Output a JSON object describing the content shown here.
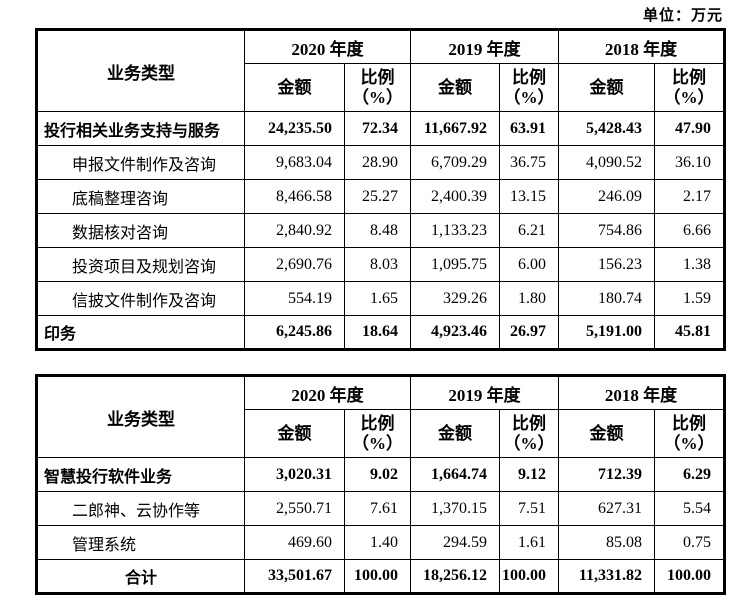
{
  "unit_label": "单位：万元",
  "tables": [
    {
      "header": {
        "business_type": "业务类型",
        "years": [
          "2020 年度",
          "2019 年度",
          "2018 年度"
        ],
        "amount": "金额",
        "ratio": "比例\n（%）"
      },
      "rows": [
        {
          "name": "投行相关业务支持与服务",
          "bold": true,
          "indent": false,
          "center": false,
          "values": [
            "24,235.50",
            "72.34",
            "11,667.92",
            "63.91",
            "5,428.43",
            "47.90"
          ]
        },
        {
          "name": "申报文件制作及咨询",
          "bold": false,
          "indent": true,
          "center": false,
          "values": [
            "9,683.04",
            "28.90",
            "6,709.29",
            "36.75",
            "4,090.52",
            "36.10"
          ]
        },
        {
          "name": "底稿整理咨询",
          "bold": false,
          "indent": true,
          "center": false,
          "values": [
            "8,466.58",
            "25.27",
            "2,400.39",
            "13.15",
            "246.09",
            "2.17"
          ]
        },
        {
          "name": "数据核对咨询",
          "bold": false,
          "indent": true,
          "center": false,
          "values": [
            "2,840.92",
            "8.48",
            "1,133.23",
            "6.21",
            "754.86",
            "6.66"
          ]
        },
        {
          "name": "投资项目及规划咨询",
          "bold": false,
          "indent": true,
          "center": false,
          "values": [
            "2,690.76",
            "8.03",
            "1,095.75",
            "6.00",
            "156.23",
            "1.38"
          ]
        },
        {
          "name": "信披文件制作及咨询",
          "bold": false,
          "indent": true,
          "center": false,
          "values": [
            "554.19",
            "1.65",
            "329.26",
            "1.80",
            "180.74",
            "1.59"
          ]
        },
        {
          "name": "印务",
          "bold": true,
          "indent": false,
          "center": false,
          "values": [
            "6,245.86",
            "18.64",
            "4,923.46",
            "26.97",
            "5,191.00",
            "45.81"
          ]
        }
      ]
    },
    {
      "header": {
        "business_type": "业务类型",
        "years": [
          "2020 年度",
          "2019 年度",
          "2018 年度"
        ],
        "amount": "金额",
        "ratio": "比例\n（%）"
      },
      "rows": [
        {
          "name": "智慧投行软件业务",
          "bold": true,
          "indent": false,
          "center": false,
          "values": [
            "3,020.31",
            "9.02",
            "1,664.74",
            "9.12",
            "712.39",
            "6.29"
          ]
        },
        {
          "name": "二郎神、云协作等",
          "bold": false,
          "indent": true,
          "center": false,
          "values": [
            "2,550.71",
            "7.61",
            "1,370.15",
            "7.51",
            "627.31",
            "5.54"
          ]
        },
        {
          "name": "管理系统",
          "bold": false,
          "indent": true,
          "center": false,
          "values": [
            "469.60",
            "1.40",
            "294.59",
            "1.61",
            "85.08",
            "0.75"
          ]
        },
        {
          "name": "合计",
          "bold": true,
          "indent": false,
          "center": true,
          "values": [
            "33,501.67",
            "100.00",
            "18,256.12",
            "100.00",
            "11,331.82",
            "100.00"
          ]
        }
      ]
    }
  ]
}
